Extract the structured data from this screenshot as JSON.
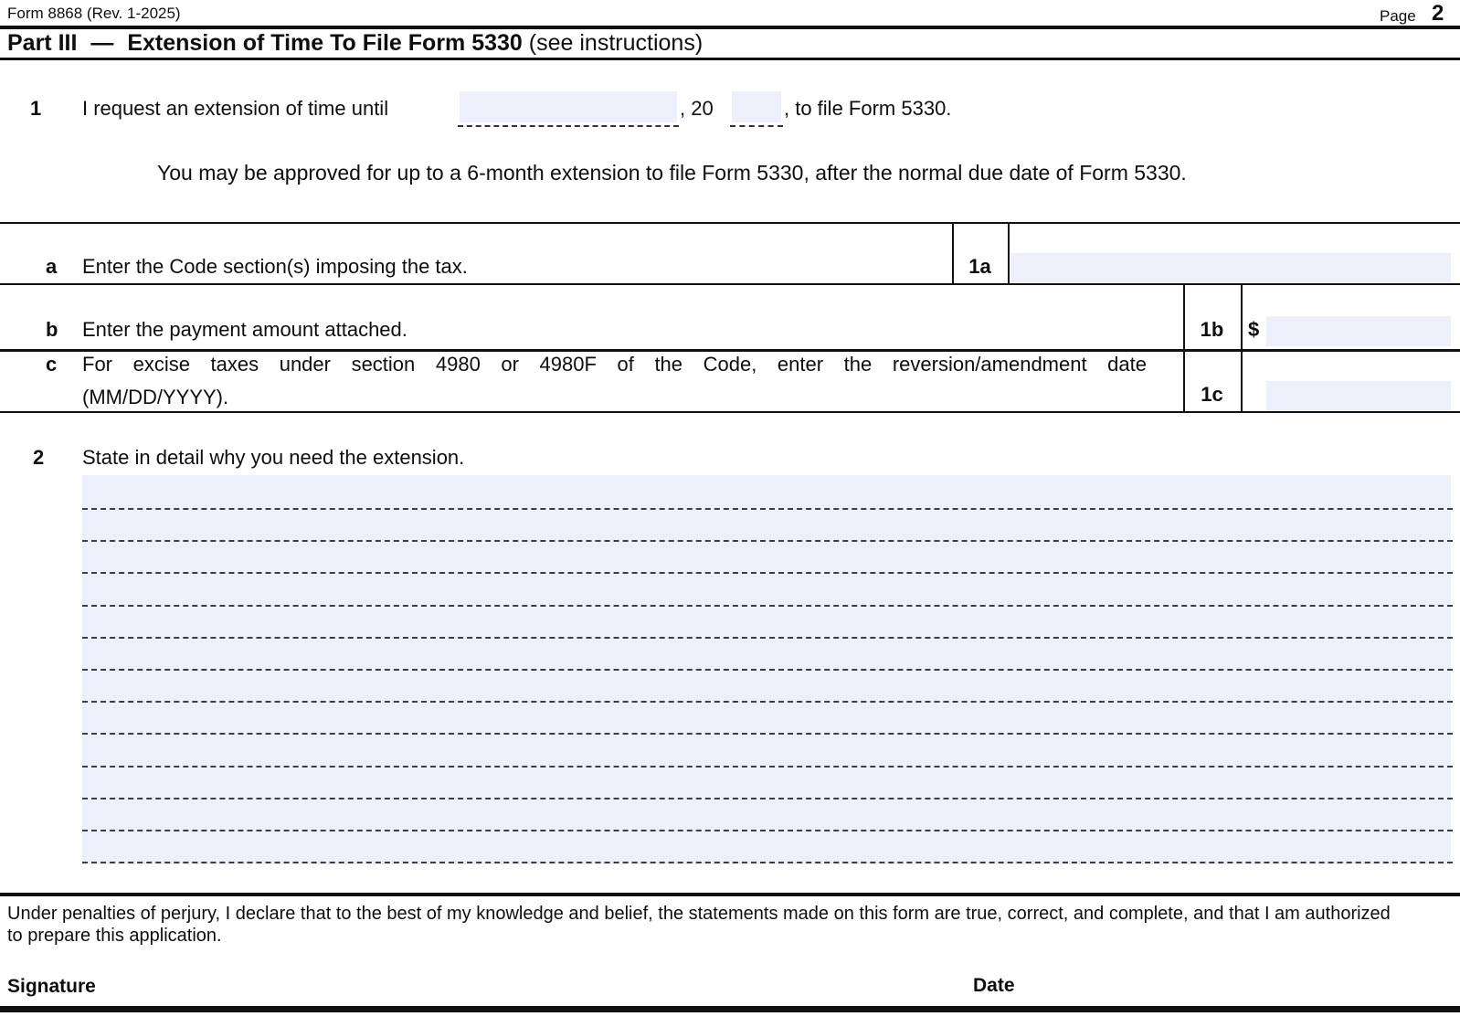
{
  "header": {
    "form_id": "Form 8868 (Rev. 1-2025)",
    "page_label": "Page",
    "page_number": "2"
  },
  "part3": {
    "part_label": "Part III",
    "dash": "—",
    "title": "Extension of Time To File Form 5330",
    "note": "(see instructions)"
  },
  "line1": {
    "number": "1",
    "text_before": "I request an extension of time until",
    "date_value": "",
    "year_prefix": ", 20",
    "year_value": "",
    "text_after": ", to file Form 5330."
  },
  "approval_note": "You may be approved for up to a 6-month extension to file Form 5330, after the normal due date of Form 5330.",
  "rows": {
    "a": {
      "letter": "a",
      "label": "Enter the Code section(s) imposing the tax.",
      "box": "1a",
      "value": ""
    },
    "b": {
      "letter": "b",
      "label": "Enter the payment amount attached.",
      "box": "1b",
      "currency": "$",
      "value": ""
    },
    "c": {
      "letter": "c",
      "label_line1": "For excise taxes under section 4980 or 4980F of the Code, enter the reversion/amendment date",
      "label_line2": "(MM/DD/YYYY).",
      "box": "1c",
      "value": ""
    }
  },
  "line2": {
    "number": "2",
    "label": "State in detail why you need the extension.",
    "value": ""
  },
  "declaration": [
    "Under penalties of perjury, I declare that to the best of my knowledge and belief, the statements made on this form are true, correct, and complete, and that I am authorized",
    "to prepare this application."
  ],
  "signature": {
    "signature_label": "Signature",
    "date_label": "Date"
  },
  "colors": {
    "field_bg": "#edf0fa",
    "line": "#111111",
    "dash": "#3c3c46"
  }
}
